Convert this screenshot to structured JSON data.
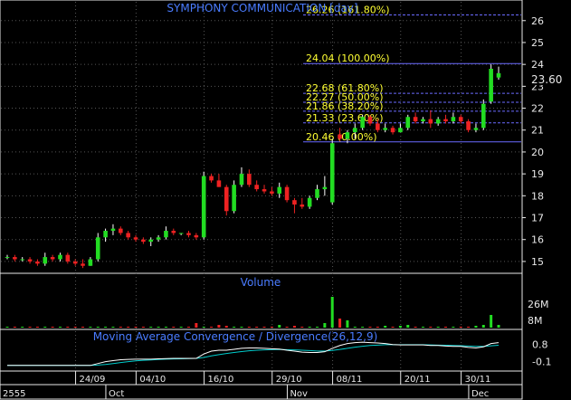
{
  "chart_data": {
    "type": "candlestick",
    "title": "SYMPHONY COMMUNICATION [day]",
    "last_price": "23.60",
    "price_axis": {
      "ticks": [
        "26",
        "25",
        "24",
        "23",
        "22",
        "21",
        "20",
        "19",
        "18",
        "17",
        "16",
        "15"
      ],
      "ylim": [
        14.5,
        26.9
      ]
    },
    "fibonacci": [
      {
        "level": 26.26,
        "label": "26.26 (161.80%)"
      },
      {
        "level": 24.04,
        "label": "24.04 (100.00%)"
      },
      {
        "level": 22.68,
        "label": "22.68 (61.80%)"
      },
      {
        "level": 22.27,
        "label": "22.27 (50.00%)"
      },
      {
        "level": 21.86,
        "label": "21.86 (38.20%)"
      },
      {
        "level": 21.33,
        "label": "21.33 (23.60%)"
      },
      {
        "level": 20.46,
        "label": "20.46 (0.00%)"
      }
    ],
    "candles": [
      {
        "o": 15.2,
        "h": 15.3,
        "l": 15.1,
        "c": 15.2
      },
      {
        "o": 15.2,
        "h": 15.3,
        "l": 15.0,
        "c": 15.1
      },
      {
        "o": 15.1,
        "h": 15.2,
        "l": 15.0,
        "c": 15.1
      },
      {
        "o": 15.1,
        "h": 15.2,
        "l": 14.9,
        "c": 15.0
      },
      {
        "o": 15.0,
        "h": 15.1,
        "l": 14.8,
        "c": 14.9
      },
      {
        "o": 14.9,
        "h": 15.4,
        "l": 14.8,
        "c": 15.2
      },
      {
        "o": 15.2,
        "h": 15.3,
        "l": 15.0,
        "c": 15.1
      },
      {
        "o": 15.1,
        "h": 15.4,
        "l": 15.0,
        "c": 15.3
      },
      {
        "o": 15.3,
        "h": 15.4,
        "l": 14.9,
        "c": 15.0
      },
      {
        "o": 15.0,
        "h": 15.1,
        "l": 14.8,
        "c": 14.9
      },
      {
        "o": 14.9,
        "h": 15.1,
        "l": 14.7,
        "c": 14.8
      },
      {
        "o": 14.8,
        "h": 15.2,
        "l": 14.8,
        "c": 15.1
      },
      {
        "o": 15.1,
        "h": 16.3,
        "l": 15.0,
        "c": 16.1
      },
      {
        "o": 16.1,
        "h": 16.5,
        "l": 15.9,
        "c": 16.4
      },
      {
        "o": 16.4,
        "h": 16.7,
        "l": 16.2,
        "c": 16.5
      },
      {
        "o": 16.5,
        "h": 16.6,
        "l": 16.2,
        "c": 16.3
      },
      {
        "o": 16.3,
        "h": 16.4,
        "l": 16.0,
        "c": 16.1
      },
      {
        "o": 16.1,
        "h": 16.2,
        "l": 15.9,
        "c": 16.0
      },
      {
        "o": 16.0,
        "h": 16.1,
        "l": 15.8,
        "c": 15.9
      },
      {
        "o": 15.9,
        "h": 16.1,
        "l": 15.7,
        "c": 16.0
      },
      {
        "o": 16.0,
        "h": 16.2,
        "l": 15.9,
        "c": 16.1
      },
      {
        "o": 16.1,
        "h": 16.6,
        "l": 16.0,
        "c": 16.4
      },
      {
        "o": 16.4,
        "h": 16.5,
        "l": 16.2,
        "c": 16.3
      },
      {
        "o": 16.3,
        "h": 16.3,
        "l": 16.2,
        "c": 16.3
      },
      {
        "o": 16.3,
        "h": 16.4,
        "l": 16.1,
        "c": 16.2
      },
      {
        "o": 16.2,
        "h": 16.3,
        "l": 16.0,
        "c": 16.1
      },
      {
        "o": 16.1,
        "h": 19.1,
        "l": 16.0,
        "c": 18.9
      },
      {
        "o": 18.9,
        "h": 19.0,
        "l": 18.6,
        "c": 18.7
      },
      {
        "o": 18.7,
        "h": 19.0,
        "l": 18.4,
        "c": 18.4
      },
      {
        "o": 18.4,
        "h": 18.5,
        "l": 17.1,
        "c": 17.3
      },
      {
        "o": 17.3,
        "h": 18.7,
        "l": 17.2,
        "c": 18.5
      },
      {
        "o": 18.5,
        "h": 19.3,
        "l": 18.4,
        "c": 19.0
      },
      {
        "o": 19.0,
        "h": 19.2,
        "l": 18.4,
        "c": 18.5
      },
      {
        "o": 18.5,
        "h": 18.7,
        "l": 18.2,
        "c": 18.3
      },
      {
        "o": 18.3,
        "h": 18.5,
        "l": 18.1,
        "c": 18.2
      },
      {
        "o": 18.2,
        "h": 18.4,
        "l": 18.0,
        "c": 18.1
      },
      {
        "o": 18.1,
        "h": 18.6,
        "l": 17.9,
        "c": 18.4
      },
      {
        "o": 18.4,
        "h": 18.5,
        "l": 17.7,
        "c": 17.8
      },
      {
        "o": 17.8,
        "h": 17.9,
        "l": 17.2,
        "c": 17.6
      },
      {
        "o": 17.6,
        "h": 17.9,
        "l": 17.4,
        "c": 17.5
      },
      {
        "o": 17.5,
        "h": 18.0,
        "l": 17.4,
        "c": 17.9
      },
      {
        "o": 17.9,
        "h": 18.5,
        "l": 17.8,
        "c": 18.3
      },
      {
        "o": 18.3,
        "h": 18.9,
        "l": 18.0,
        "c": 18.4
      },
      {
        "o": 17.7,
        "h": 20.6,
        "l": 17.6,
        "c": 20.4
      },
      {
        "o": 20.8,
        "h": 21.1,
        "l": 20.5,
        "c": 20.6
      },
      {
        "o": 20.6,
        "h": 21.0,
        "l": 20.4,
        "c": 20.9
      },
      {
        "o": 20.9,
        "h": 21.3,
        "l": 20.6,
        "c": 21.1
      },
      {
        "o": 21.1,
        "h": 21.7,
        "l": 21.0,
        "c": 21.6
      },
      {
        "o": 21.6,
        "h": 21.7,
        "l": 21.2,
        "c": 21.3
      },
      {
        "o": 21.3,
        "h": 21.5,
        "l": 20.9,
        "c": 21.0
      },
      {
        "o": 21.0,
        "h": 21.3,
        "l": 20.9,
        "c": 21.1
      },
      {
        "o": 21.1,
        "h": 21.2,
        "l": 20.8,
        "c": 20.9
      },
      {
        "o": 20.9,
        "h": 21.3,
        "l": 20.9,
        "c": 21.1
      },
      {
        "o": 21.1,
        "h": 21.7,
        "l": 21.0,
        "c": 21.6
      },
      {
        "o": 21.6,
        "h": 21.8,
        "l": 21.3,
        "c": 21.4
      },
      {
        "o": 21.4,
        "h": 21.6,
        "l": 21.3,
        "c": 21.5
      },
      {
        "o": 21.5,
        "h": 21.9,
        "l": 21.1,
        "c": 21.3
      },
      {
        "o": 21.3,
        "h": 21.6,
        "l": 21.2,
        "c": 21.5
      },
      {
        "o": 21.5,
        "h": 21.7,
        "l": 21.3,
        "c": 21.4
      },
      {
        "o": 21.4,
        "h": 21.8,
        "l": 21.3,
        "c": 21.6
      },
      {
        "o": 21.6,
        "h": 21.7,
        "l": 21.3,
        "c": 21.4
      },
      {
        "o": 21.4,
        "h": 21.5,
        "l": 20.9,
        "c": 21.0
      },
      {
        "o": 21.0,
        "h": 21.3,
        "l": 20.9,
        "c": 21.1
      },
      {
        "o": 21.1,
        "h": 22.4,
        "l": 21.0,
        "c": 22.2
      },
      {
        "o": 22.3,
        "h": 24.0,
        "l": 22.2,
        "c": 23.8
      },
      {
        "o": 23.4,
        "h": 23.9,
        "l": 23.3,
        "c": 23.6
      }
    ],
    "volume": {
      "label": "Volume",
      "ticks": [
        "26M",
        "8M"
      ],
      "ymax": 42,
      "values": [
        1,
        1,
        1,
        1,
        1,
        1,
        1,
        1,
        1,
        1,
        1,
        1,
        1,
        1,
        1,
        1,
        1,
        1,
        1,
        1,
        1,
        1,
        1,
        1,
        1,
        5,
        1,
        1,
        3,
        2,
        1,
        1,
        1,
        1,
        1,
        1,
        3,
        1,
        2,
        1,
        1,
        1,
        5,
        34,
        10,
        8,
        1,
        1,
        1,
        1,
        2,
        1,
        2,
        3,
        1,
        1,
        1,
        1,
        1,
        1,
        1,
        1,
        2,
        3,
        14,
        3
      ]
    },
    "macd": {
      "label": "Moving Average Convergence / Divergence(26,12,9)",
      "ticks": [
        "0.8",
        "-0.1"
      ],
      "ylim": [
        -0.5,
        1.5
      ],
      "macd": [
        -0.3,
        -0.3,
        -0.3,
        -0.3,
        -0.3,
        -0.3,
        -0.3,
        -0.3,
        -0.3,
        -0.3,
        -0.3,
        -0.3,
        -0.2,
        -0.1,
        -0.05,
        0,
        0.02,
        0.03,
        0.03,
        0.03,
        0.05,
        0.06,
        0.07,
        0.07,
        0.07,
        0.07,
        0.3,
        0.45,
        0.5,
        0.5,
        0.55,
        0.6,
        0.62,
        0.62,
        0.6,
        0.58,
        0.56,
        0.5,
        0.45,
        0.4,
        0.38,
        0.38,
        0.42,
        0.6,
        0.75,
        0.85,
        0.9,
        0.92,
        0.9,
        0.88,
        0.85,
        0.8,
        0.78,
        0.78,
        0.78,
        0.78,
        0.75,
        0.75,
        0.72,
        0.7,
        0.7,
        0.65,
        0.62,
        0.68,
        0.85,
        0.9
      ],
      "signal": [
        -0.3,
        -0.3,
        -0.3,
        -0.3,
        -0.3,
        -0.3,
        -0.3,
        -0.3,
        -0.3,
        -0.3,
        -0.3,
        -0.3,
        -0.28,
        -0.25,
        -0.2,
        -0.15,
        -0.1,
        -0.06,
        -0.03,
        -0.01,
        0.01,
        0.03,
        0.04,
        0.05,
        0.06,
        0.07,
        0.12,
        0.2,
        0.27,
        0.33,
        0.38,
        0.43,
        0.47,
        0.5,
        0.52,
        0.53,
        0.54,
        0.53,
        0.52,
        0.5,
        0.48,
        0.46,
        0.46,
        0.49,
        0.54,
        0.6,
        0.66,
        0.71,
        0.75,
        0.77,
        0.79,
        0.79,
        0.79,
        0.79,
        0.79,
        0.79,
        0.78,
        0.77,
        0.76,
        0.75,
        0.74,
        0.72,
        0.7,
        0.7,
        0.73,
        0.76
      ]
    },
    "x_date_ticks": [
      {
        "label": "24/09",
        "i": 10
      },
      {
        "label": "04/10",
        "i": 18
      },
      {
        "label": "16/10",
        "i": 27
      },
      {
        "label": "29/10",
        "i": 36
      },
      {
        "label": "08/11",
        "i": 44
      },
      {
        "label": "20/11",
        "i": 53
      },
      {
        "label": "30/11",
        "i": 61
      }
    ],
    "x_month_ticks": [
      {
        "label": "2555",
        "i": -1
      },
      {
        "label": "Oct",
        "i": 14
      },
      {
        "label": "Nov",
        "i": 38
      },
      {
        "label": "Dec",
        "i": 62
      }
    ]
  }
}
